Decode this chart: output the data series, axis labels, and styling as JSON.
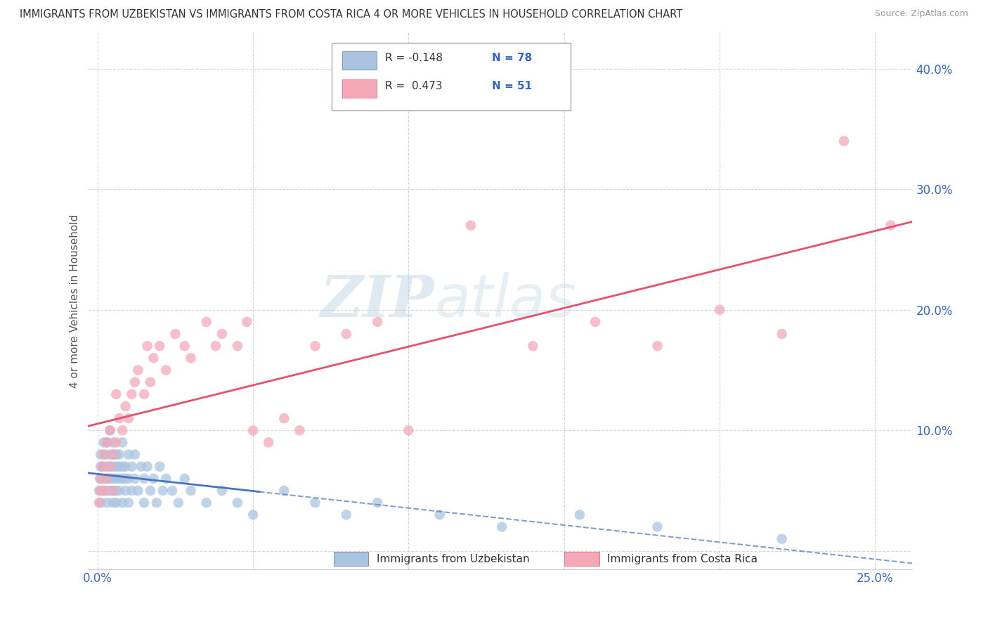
{
  "title": "IMMIGRANTS FROM UZBEKISTAN VS IMMIGRANTS FROM COSTA RICA 4 OR MORE VEHICLES IN HOUSEHOLD CORRELATION CHART",
  "source": "Source: ZipAtlas.com",
  "ylabel": "4 or more Vehicles in Household",
  "xlim": [
    -0.003,
    0.262
  ],
  "ylim": [
    -0.015,
    0.43
  ],
  "color_uzbekistan": "#aac4e0",
  "color_costa_rica": "#f4a8b8",
  "line_color_uzbekistan": "#4477bb",
  "line_color_costa_rica": "#e8506a",
  "watermark_zip": "ZIP",
  "watermark_atlas": "atlas",
  "legend_label1": "Immigrants from Uzbekistan",
  "legend_label2": "Immigrants from Costa Rica",
  "uzbekistan_x": [
    0.0005,
    0.0008,
    0.001,
    0.001,
    0.001,
    0.0015,
    0.002,
    0.002,
    0.002,
    0.002,
    0.0025,
    0.003,
    0.003,
    0.003,
    0.003,
    0.003,
    0.004,
    0.004,
    0.004,
    0.004,
    0.004,
    0.005,
    0.005,
    0.005,
    0.005,
    0.005,
    0.005,
    0.006,
    0.006,
    0.006,
    0.006,
    0.006,
    0.007,
    0.007,
    0.007,
    0.007,
    0.008,
    0.008,
    0.008,
    0.008,
    0.009,
    0.009,
    0.009,
    0.01,
    0.01,
    0.01,
    0.011,
    0.011,
    0.012,
    0.012,
    0.013,
    0.014,
    0.015,
    0.015,
    0.016,
    0.017,
    0.018,
    0.019,
    0.02,
    0.021,
    0.022,
    0.024,
    0.026,
    0.028,
    0.03,
    0.035,
    0.04,
    0.045,
    0.05,
    0.06,
    0.07,
    0.08,
    0.09,
    0.11,
    0.13,
    0.155,
    0.18,
    0.22
  ],
  "uzbekistan_y": [
    0.05,
    0.06,
    0.04,
    0.07,
    0.08,
    0.06,
    0.05,
    0.07,
    0.09,
    0.06,
    0.08,
    0.04,
    0.06,
    0.07,
    0.09,
    0.05,
    0.06,
    0.08,
    0.1,
    0.05,
    0.07,
    0.04,
    0.06,
    0.08,
    0.05,
    0.07,
    0.09,
    0.05,
    0.07,
    0.06,
    0.08,
    0.04,
    0.06,
    0.07,
    0.05,
    0.08,
    0.06,
    0.07,
    0.04,
    0.09,
    0.06,
    0.05,
    0.07,
    0.06,
    0.08,
    0.04,
    0.07,
    0.05,
    0.06,
    0.08,
    0.05,
    0.07,
    0.06,
    0.04,
    0.07,
    0.05,
    0.06,
    0.04,
    0.07,
    0.05,
    0.06,
    0.05,
    0.04,
    0.06,
    0.05,
    0.04,
    0.05,
    0.04,
    0.03,
    0.05,
    0.04,
    0.03,
    0.04,
    0.03,
    0.02,
    0.03,
    0.02,
    0.01
  ],
  "costa_rica_x": [
    0.0005,
    0.001,
    0.001,
    0.0015,
    0.002,
    0.002,
    0.003,
    0.003,
    0.004,
    0.004,
    0.005,
    0.005,
    0.006,
    0.006,
    0.007,
    0.008,
    0.009,
    0.01,
    0.011,
    0.012,
    0.013,
    0.015,
    0.016,
    0.017,
    0.018,
    0.02,
    0.022,
    0.025,
    0.028,
    0.03,
    0.035,
    0.038,
    0.04,
    0.045,
    0.048,
    0.05,
    0.055,
    0.06,
    0.065,
    0.07,
    0.08,
    0.09,
    0.1,
    0.12,
    0.14,
    0.16,
    0.18,
    0.2,
    0.22,
    0.24,
    0.255
  ],
  "costa_rica_y": [
    0.04,
    0.05,
    0.06,
    0.07,
    0.05,
    0.08,
    0.06,
    0.09,
    0.07,
    0.1,
    0.05,
    0.08,
    0.13,
    0.09,
    0.11,
    0.1,
    0.12,
    0.11,
    0.13,
    0.14,
    0.15,
    0.13,
    0.17,
    0.14,
    0.16,
    0.17,
    0.15,
    0.18,
    0.17,
    0.16,
    0.19,
    0.17,
    0.18,
    0.17,
    0.19,
    0.1,
    0.09,
    0.11,
    0.1,
    0.17,
    0.18,
    0.19,
    0.1,
    0.27,
    0.17,
    0.19,
    0.17,
    0.2,
    0.18,
    0.34,
    0.27
  ]
}
